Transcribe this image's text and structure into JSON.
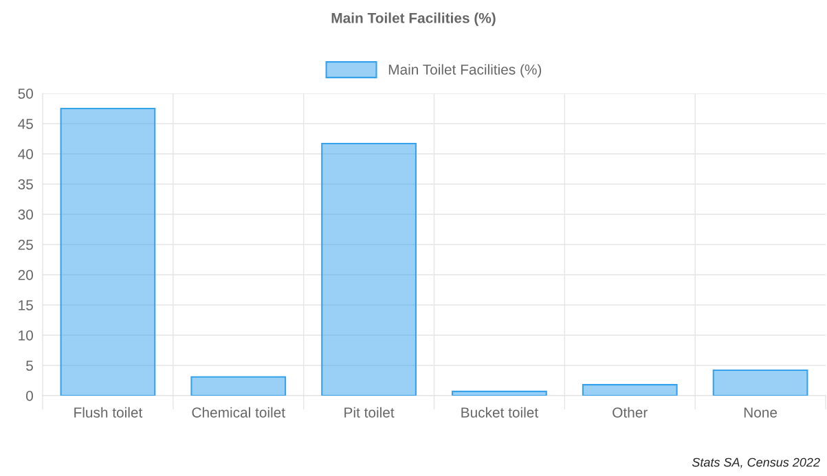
{
  "chart_data": {
    "type": "bar",
    "title": "Main Toilet Facilities (%)",
    "categories": [
      "Flush toilet",
      "Chemical toilet",
      "Pit toilet",
      "Bucket toilet",
      "Other",
      "None"
    ],
    "series": [
      {
        "name": "Main Toilet Facilities (%)",
        "color": "#36a2eb",
        "values": [
          47.5,
          3.1,
          41.7,
          0.7,
          1.8,
          4.2
        ]
      }
    ],
    "ylim": [
      0,
      50
    ],
    "yticks": [
      0,
      5,
      10,
      15,
      20,
      25,
      30,
      35,
      40,
      45,
      50
    ],
    "grid": true,
    "legend": "top",
    "annotations": [
      "Stats SA, Census 2022"
    ]
  }
}
